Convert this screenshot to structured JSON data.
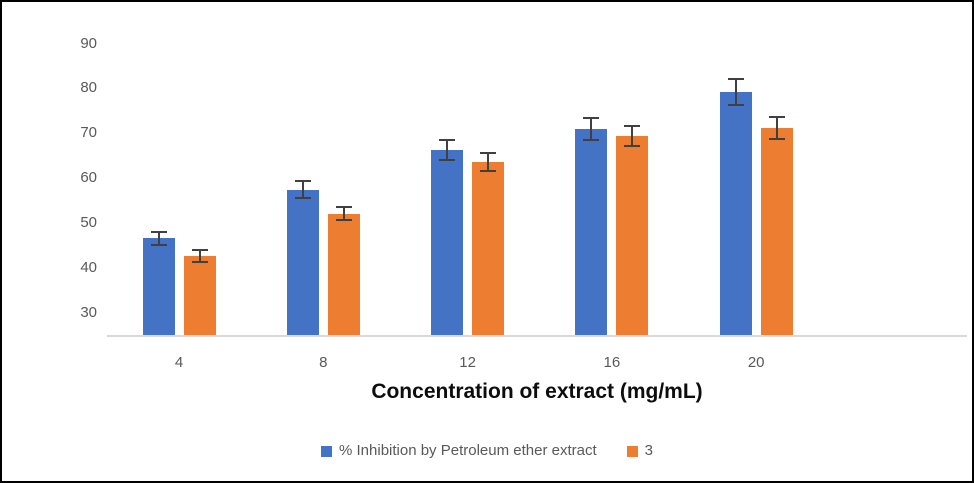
{
  "chart_data": {
    "type": "bar",
    "title": "",
    "xlabel": "Concentration of extract (mg/mL)",
    "ylabel": "",
    "categories": [
      "4",
      "8",
      "12",
      "16",
      "20"
    ],
    "series": [
      {
        "name": "% Inhibition by Petroleum ether extract",
        "color": "#4472C4",
        "values": [
          46.8,
          57.6,
          66.5,
          71.2,
          79.4
        ],
        "errors": [
          1.4,
          1.9,
          2.2,
          2.5,
          2.9
        ]
      },
      {
        "name": "3",
        "color": "#ED7D31",
        "values": [
          42.8,
          52.3,
          63.8,
          69.6,
          71.4
        ],
        "errors": [
          1.3,
          1.4,
          2.1,
          2.3,
          2.4
        ]
      }
    ],
    "ylim": [
      25,
      95
    ],
    "yticks": [
      30,
      40,
      50,
      60,
      70,
      80,
      90
    ],
    "grid": false,
    "error_bars": true,
    "legend_position": "bottom"
  },
  "colors": {
    "background": "#ffffff",
    "frame_border": "#000000",
    "axis_line": "#d9d9d9",
    "tick_label": "#595959",
    "axis_title": "#0d0d0d",
    "error_bar": "#404040"
  }
}
